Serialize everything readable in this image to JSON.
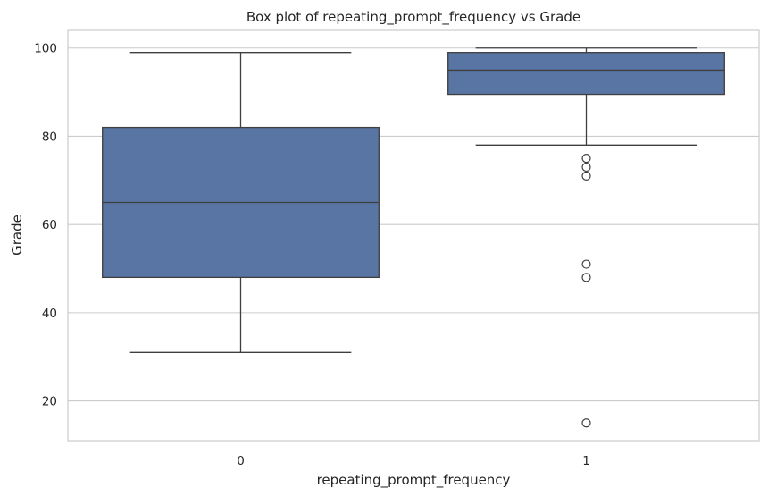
{
  "chart_data": {
    "type": "box",
    "title": "Box plot of repeating_prompt_frequency vs Grade",
    "xlabel": "repeating_prompt_frequency",
    "ylabel": "Grade",
    "categories": [
      "0",
      "1"
    ],
    "ylim": [
      11,
      104
    ],
    "yticks": [
      20,
      40,
      60,
      80,
      100
    ],
    "grid": true,
    "box_color": "#5875a4",
    "boxes": [
      {
        "category": "0",
        "whisker_low": 31,
        "q1": 48,
        "median": 65,
        "q3": 82,
        "whisker_high": 99,
        "outliers": []
      },
      {
        "category": "1",
        "whisker_low": 78,
        "q1": 89.5,
        "median": 95,
        "q3": 99,
        "whisker_high": 100,
        "outliers": [
          75,
          73,
          71,
          51,
          48,
          15
        ]
      }
    ]
  }
}
